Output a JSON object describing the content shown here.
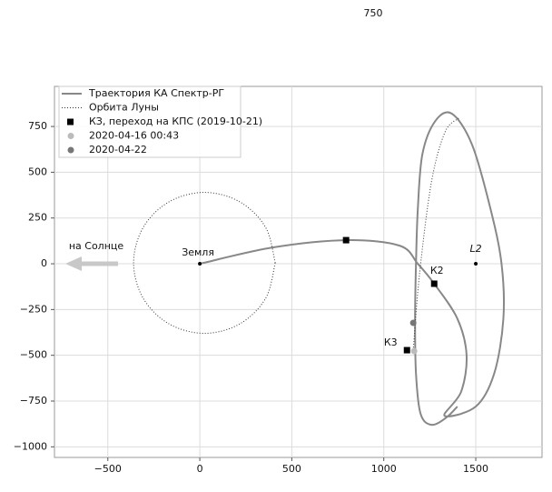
{
  "chart_data": {
    "type": "line",
    "title": "750",
    "xlim": [
      -790,
      1860
    ],
    "ylim": [
      -1058,
      969
    ],
    "xticks": [
      {
        "value": -500,
        "label": "−500"
      },
      0,
      500,
      1000,
      1500
    ],
    "yticks": [
      {
        "value": -1000,
        "label": "−1000"
      },
      {
        "value": -750,
        "label": "−750"
      },
      {
        "value": -500,
        "label": "−500"
      },
      {
        "value": -250,
        "label": "−250"
      },
      0,
      250,
      500,
      750
    ],
    "grid": true,
    "legend": "upper left",
    "series": [
      {
        "name": "Траектория КА Спектр-РГ",
        "color": "#888888",
        "style": "solid",
        "x": [
          0,
          395,
          795,
          1086,
          1185,
          1274,
          1400,
          1450,
          1420,
          1330,
          1500,
          1600,
          1650,
          1640,
          1580,
          1480,
          1370,
          1280,
          1210,
          1185,
          1175,
          1170,
          1175,
          1200,
          1260,
          1340,
          1400
        ],
        "y": [
          0,
          89,
          129,
          99,
          0,
          -109,
          -300,
          -500,
          -700,
          -830,
          -780,
          -600,
          -300,
          0,
          300,
          650,
          820,
          780,
          600,
          300,
          0,
          -300,
          -600,
          -820,
          -880,
          -840,
          -780
        ]
      },
      {
        "name": "Орбита Луны",
        "color": "#333333",
        "style": "dotted",
        "x": [
          410,
          358,
          218,
          25,
          -168,
          -308,
          -360,
          -308,
          -168,
          25,
          218,
          358,
          410,
          null,
          1160,
          1195,
          1259,
          1333,
          1407
        ],
        "y": [
          5,
          198,
          338,
          390,
          338,
          198,
          5,
          -188,
          -328,
          -380,
          -328,
          -188,
          5,
          null,
          -472,
          -50,
          447,
          720,
          795
        ]
      },
      {
        "name": "КЗ, переход на КПС (2019-10-21)",
        "color": "#000000",
        "marker": "square",
        "x": [
          795,
          1274,
          1126
        ],
        "y": [
          129,
          -109,
          -472
        ]
      },
      {
        "name": "2020-04-16 00:43",
        "color": "#bbbbbb",
        "marker": "circle",
        "x": [
          1165
        ],
        "y": [
          -477
        ]
      },
      {
        "name": "2020-04-22",
        "color": "#777777",
        "marker": "circle",
        "x": [
          1160
        ],
        "y": [
          -323
        ]
      }
    ],
    "annotations": [
      {
        "text": "Земля",
        "x": 0,
        "y": 0
      },
      {
        "text": "L2",
        "x": 1500,
        "y": 0
      },
      {
        "text": "К2",
        "x": 1274,
        "y": -109
      },
      {
        "text": "К3",
        "x": 1126,
        "y": -472
      }
    ],
    "arrow_label": "на Солнце"
  }
}
